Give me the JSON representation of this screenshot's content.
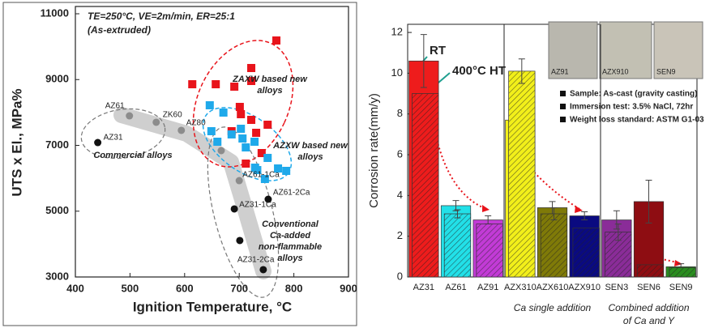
{
  "chart_data": [
    {
      "type": "scatter",
      "x_label": "Ignition Temperature, °C",
      "y_label": "UTS x El., MPa%",
      "annotations": [
        "TE=250°C, VE=2m/min, ER=25:1",
        "(As-extruded)"
      ],
      "xlim": [
        400,
        900
      ],
      "xticks": [
        400,
        500,
        600,
        700,
        800,
        900
      ],
      "ylim": [
        3000,
        11000
      ],
      "yticks": [
        3000,
        5000,
        7000,
        9000,
        11000
      ],
      "series": [
        {
          "name": "ZAXW based new alloys",
          "color": "#e8141b",
          "marker": "square",
          "x": [
            768,
            722,
            614,
            657,
            722,
            691,
            701,
            703,
            722,
            686,
            752,
            741,
            712,
            731
          ],
          "values": [
            10188,
            9351,
            8858,
            8858,
            8957,
            8785,
            8169,
            7948,
            7775,
            7431,
            7628,
            6766,
            6446,
            7382
          ]
        },
        {
          "name": "AZXW based new alloys",
          "color": "#1fa9ea",
          "marker": "square",
          "x": [
            646,
            671,
            703,
            649,
            686,
            660,
            706,
            728,
            752,
            729,
            747,
            771,
            786,
            733,
            712
          ],
          "values": [
            8219,
            7997,
            7505,
            7431,
            7333,
            7111,
            7209,
            7111,
            6619,
            6323,
            5978,
            6298,
            6225,
            6249,
            6938
          ]
        },
        {
          "name": "Commercial alloys",
          "color": "#8c8c8c",
          "marker": "circle",
          "x": [
            499,
            548,
            594,
            667,
            700
          ],
          "values": [
            7898,
            7702,
            7456,
            6840,
            5929
          ],
          "labels": [
            "AZ61",
            "ZK60",
            "AZ80",
            null,
            "AZ61-1Ca"
          ]
        },
        {
          "name": "Conventional Ca-added non-flammable alloys",
          "color": "#111111",
          "marker": "circle",
          "x": [
            441,
            753,
            691,
            701,
            744
          ],
          "values": [
            7086,
            5363,
            5068,
            4108,
            3222
          ],
          "labels": [
            "AZ31",
            "AZ61-2Ca",
            "AZ31-1Ca",
            null,
            "AZ31-2Ca"
          ]
        }
      ]
    },
    {
      "type": "bar",
      "y_label": "Corrosion rate(mm/y)",
      "categories": [
        "AZ31",
        "AZ61",
        "AZ91",
        "AZX310",
        "AZX610",
        "AZX910",
        "SEN3",
        "SEN6",
        "SEN9"
      ],
      "colors": [
        "#ee1c1c",
        "#22e0e8",
        "#c23bd6",
        "#f2ef1a",
        "#7f7a08",
        "#0a0a80",
        "#8a2c98",
        "#8e0d12",
        "#2a8d1f"
      ],
      "ylim": [
        0,
        12.4
      ],
      "yticks": [
        0,
        2,
        4,
        6,
        8,
        10,
        12
      ],
      "series": [
        {
          "name": "RT",
          "values": [
            10.6,
            3.5,
            2.8,
            7.7,
            3.4,
            3.0,
            2.8,
            3.7,
            0.5
          ],
          "errors": [
            1.3,
            0.25,
            0.2,
            null,
            0.3,
            0.2,
            0.45,
            1.05,
            0.15
          ]
        },
        {
          "name": "400°C HT",
          "values": [
            9.0,
            3.1,
            2.6,
            10.1,
            3.1,
            2.4,
            2.2,
            0.6,
            0.45
          ],
          "errors": [
            null,
            0.2,
            null,
            0.6,
            0.3,
            null,
            0.4,
            null,
            null
          ]
        }
      ],
      "group_labels": [
        "Ca single addition",
        "Combined addition of Ca and Y"
      ],
      "notes": [
        "Sample: As-cast (gravity casting)",
        "Immersion test: 3.5% NaCl, 72hr",
        "Weight loss standard: ASTM G1-03"
      ],
      "photo_labels": [
        "AZ91",
        "AZX910",
        "SEN9"
      ]
    }
  ]
}
